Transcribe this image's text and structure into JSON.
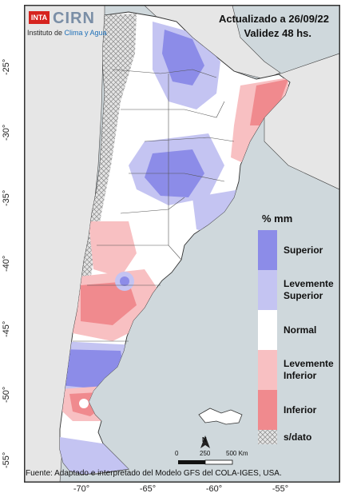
{
  "header": {
    "updated": "Actualizado a 26/09/22",
    "validity": "Validez 48 hs."
  },
  "logo": {
    "inta": "INTA",
    "cirn": "CIRN",
    "institute_prefix": "Instituto de ",
    "institute_highlight": "Clima y Agua"
  },
  "axes": {
    "lat_ticks": [
      "-25°",
      "-30°",
      "-35°",
      "-40°",
      "-45°",
      "-50°",
      "-55°"
    ],
    "lon_ticks": [
      "-70°",
      "-65°",
      "-60°",
      "-55°"
    ]
  },
  "legend": {
    "title": "% mm",
    "items": [
      {
        "label": "Superior",
        "color": "#8c8ce8"
      },
      {
        "label": "Levemente Superior",
        "color": "#c4c4f2"
      },
      {
        "label": "Normal",
        "color": "#ffffff"
      },
      {
        "label": "Levemente Inferior",
        "color": "#f8c0c2"
      },
      {
        "label": "Inferior",
        "color": "#f08a8e"
      },
      {
        "label": "s/dato",
        "color": "#d8d8d8"
      }
    ]
  },
  "scale": {
    "labels": [
      "0",
      "250",
      "500 Km"
    ],
    "north": "N"
  },
  "source": "Fuente: Adaptado e interpretado del Modelo GFS del COLA-IGES, USA.",
  "colors": {
    "superior": "#8c8ce8",
    "lev_superior": "#c4c4f2",
    "normal": "#ffffff",
    "lev_inferior": "#f8c0c2",
    "inferior": "#f08a8e",
    "ocean": "#cfd8dc",
    "neighbor_land": "#e6e6e6"
  }
}
